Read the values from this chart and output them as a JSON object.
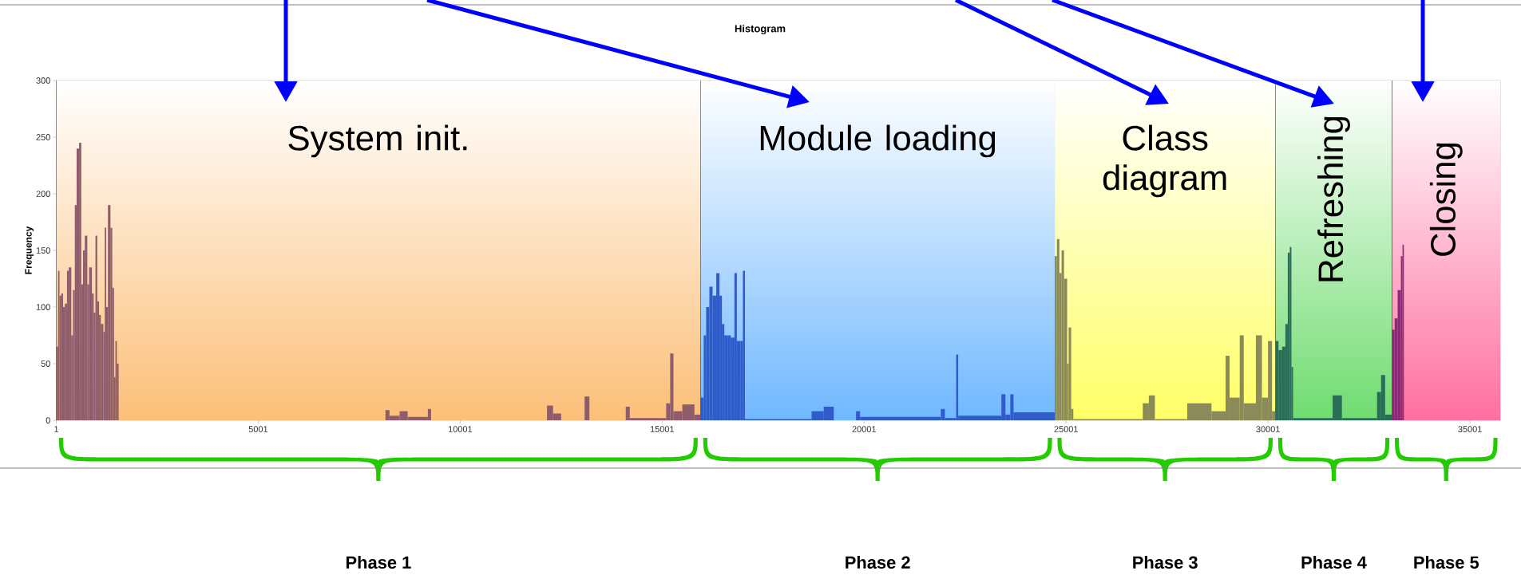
{
  "chart_data": {
    "type": "histogram",
    "title": "Histogram",
    "ylabel": "Frequency",
    "xlim": [
      1,
      35750
    ],
    "xticks": [
      {
        "value": 1,
        "label": "1"
      },
      {
        "value": 5001,
        "label": "5001"
      },
      {
        "value": 10001,
        "label": "10001"
      },
      {
        "value": 15001,
        "label": "15001"
      },
      {
        "value": 20001,
        "label": "20001"
      },
      {
        "value": 25001,
        "label": "25001"
      },
      {
        "value": 30001,
        "label": "30001"
      },
      {
        "value": 35001,
        "label": "35001"
      }
    ],
    "ylim": [
      0,
      300
    ],
    "yticks": [
      {
        "value": 0,
        "label": "0"
      },
      {
        "value": 50,
        "label": "50"
      },
      {
        "value": 100,
        "label": "100"
      },
      {
        "value": 150,
        "label": "150"
      },
      {
        "value": 200,
        "label": "200"
      },
      {
        "value": 250,
        "label": "250"
      },
      {
        "value": 300,
        "label": "300"
      }
    ],
    "bins": [
      1,
      45,
      80,
      125,
      169,
      213,
      266,
      310,
      372,
      416,
      460,
      504,
      566,
      619,
      663,
      707,
      769,
      813,
      883,
      927,
      971,
      1015,
      1060,
      1104,
      1166,
      1201,
      1236,
      1280,
      1342,
      1386,
      1430,
      1466,
      1501,
      1545,
      8150,
      8250,
      8500,
      8700,
      9200,
      9280,
      12150,
      12300,
      12500,
      13080,
      13200,
      14100,
      14200,
      15100,
      15200,
      15280,
      15500,
      15800,
      15950,
      16030,
      16090,
      16170,
      16250,
      16340,
      16420,
      16480,
      16540,
      16620,
      16700,
      16790,
      16850,
      16940,
      17000,
      17050,
      18700,
      19000,
      19250,
      19800,
      19900,
      21900,
      22000,
      22280,
      22330,
      23400,
      23500,
      23620,
      23700,
      24720,
      24774,
      24835,
      24889,
      24950,
      25027,
      25065,
      25127,
      25180,
      26900,
      27050,
      27200,
      28000,
      28600,
      28950,
      29050,
      29300,
      29400,
      29700,
      29850,
      30000,
      30100,
      30183,
      30260,
      30350,
      30430,
      30490,
      30540,
      30580,
      30620,
      31600,
      31830,
      32700,
      32800,
      32900,
      33073,
      33135,
      33210,
      33290,
      33330,
      33364
    ],
    "values": [
      65,
      132,
      110,
      112,
      100,
      103,
      132,
      135,
      75,
      115,
      190,
      240,
      245,
      120,
      150,
      163,
      120,
      135,
      112,
      95,
      163,
      105,
      93,
      85,
      78,
      170,
      100,
      190,
      170,
      117,
      38,
      70,
      50,
      0,
      9,
      4,
      8,
      3,
      10,
      0,
      13,
      6,
      0,
      21,
      0,
      12,
      2,
      15,
      59,
      8,
      14,
      5,
      20,
      75,
      100,
      118,
      110,
      130,
      110,
      85,
      75,
      75,
      73,
      130,
      70,
      70,
      132,
      1,
      8,
      12,
      0,
      8,
      3,
      10,
      2,
      58,
      4,
      23,
      5,
      23,
      7,
      145,
      160,
      130,
      150,
      125,
      50,
      82,
      10,
      1,
      15,
      22,
      1,
      15,
      8,
      57,
      20,
      75,
      15,
      75,
      20,
      70,
      8,
      70,
      62,
      65,
      85,
      148,
      153,
      47,
      2,
      22,
      2,
      25,
      40,
      5,
      80,
      90,
      115,
      145,
      155
    ],
    "colors": [
      "#8e5c6a",
      "#8e5c6a",
      "#8e5c6a",
      "#8e5c6a",
      "#8e5c6a",
      "#8e5c6a",
      "#8e5c6a",
      "#8e5c6a",
      "#8e5c6a",
      "#8e5c6a",
      "#8e5c6a",
      "#8e5c6a",
      "#8e5c6a",
      "#8e5c6a",
      "#8e5c6a",
      "#8e5c6a",
      "#8e5c6a",
      "#8e5c6a",
      "#8e5c6a",
      "#8e5c6a",
      "#8e5c6a",
      "#8e5c6a",
      "#8e5c6a",
      "#8e5c6a",
      "#8e5c6a",
      "#8e5c6a",
      "#8e5c6a",
      "#8e5c6a",
      "#8e5c6a",
      "#8e5c6a",
      "#8e5c6a",
      "#8e5c6a",
      "#8e5c6a",
      "#8e5c6a",
      "#8e5c6a",
      "#8e5c6a",
      "#8e5c6a",
      "#8e5c6a",
      "#8e5c6a",
      "#8e5c6a",
      "#8e5c6a",
      "#8e5c6a",
      "#8e5c6a",
      "#8e5c6a",
      "#8e5c6a",
      "#8e5c6a",
      "#8e5c6a",
      "#8e5c6a",
      "#8e5c6a",
      "#8e5c6a",
      "#8e5c6a",
      "#8e5c6a",
      "#2f5cc8",
      "#2f5cc8",
      "#2f5cc8",
      "#2f5cc8",
      "#2f5cc8",
      "#2f5cc8",
      "#2f5cc8",
      "#2f5cc8",
      "#2f5cc8",
      "#2f5cc8",
      "#2f5cc8",
      "#2f5cc8",
      "#2f5cc8",
      "#2f5cc8",
      "#2f5cc8",
      "#2f5cc8",
      "#2f5cc8",
      "#2f5cc8",
      "#2f5cc8",
      "#2f5cc8",
      "#2f5cc8",
      "#2f5cc8",
      "#2f5cc8",
      "#2f5cc8",
      "#2f5cc8",
      "#2f5cc8",
      "#2f5cc8",
      "#2f5cc8",
      "#2f5cc8",
      "#8a8a5a",
      "#8a8a5a",
      "#8a8a5a",
      "#8a8a5a",
      "#8a8a5a",
      "#8a8a5a",
      "#8a8a5a",
      "#8a8a5a",
      "#8a8a5a",
      "#8a8a5a",
      "#8a8a5a",
      "#8a8a5a",
      "#8a8a5a",
      "#8a8a5a",
      "#8a8a5a",
      "#8a8a5a",
      "#8a8a5a",
      "#8a8a5a",
      "#8a8a5a",
      "#8a8a5a",
      "#8a8a5a",
      "#8a8a5a",
      "#2a6e58",
      "#2a6e58",
      "#2a6e58",
      "#2a6e58",
      "#2a6e58",
      "#2a6e58",
      "#2a6e58",
      "#2a6e58",
      "#2a6e58",
      "#2a6e58",
      "#2a6e58",
      "#2a6e58",
      "#2a6e58",
      "#8a2a78",
      "#8a2a78",
      "#8a2a78",
      "#8a2a78",
      "#8a2a78"
    ],
    "bands": [
      {
        "axis": "x",
        "from": 1,
        "to": 15950,
        "label": "System init.",
        "color": "#fcbf78"
      },
      {
        "axis": "x",
        "from": 15950,
        "to": 24720,
        "label": "Module loading",
        "color": "#70b8ff"
      },
      {
        "axis": "x",
        "from": 24720,
        "to": 30183,
        "label": "Class diagram",
        "color": "#ffff66"
      },
      {
        "axis": "x",
        "from": 30183,
        "to": 33073,
        "label": "Refreshing",
        "color": "#6fdc6f"
      },
      {
        "axis": "x",
        "from": 33073,
        "to": 35750,
        "label": "Closing",
        "color": "#ff6fa0"
      }
    ],
    "annotations": [
      "Phase 1",
      "Phase 2",
      "Phase 3",
      "Phase 4",
      "Phase 5"
    ],
    "grid": false
  }
}
